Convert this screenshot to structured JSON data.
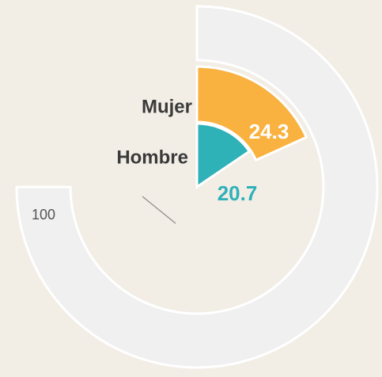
{
  "chart_data": {
    "type": "radial_bar",
    "categories": [
      "Mujer",
      "Hombre"
    ],
    "series": [
      {
        "name": "Mujer",
        "color": "#f9b13f",
        "values": [
          24.3,
          null
        ]
      },
      {
        "name": "Hombre",
        "color": "#2fb1b8",
        "values": [
          null,
          20.7
        ]
      }
    ],
    "xlim": [
      0,
      100
    ],
    "xticks": [
      100
    ],
    "track_color": "#f0f0f0"
  }
}
